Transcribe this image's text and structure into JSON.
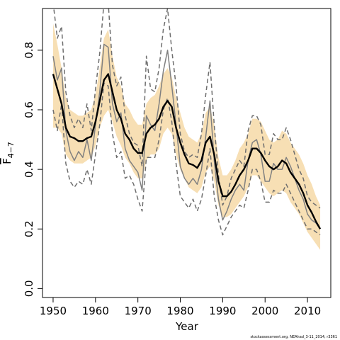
{
  "chart_data": {
    "type": "line",
    "title": "",
    "xlabel": "Year",
    "ylabel": "F4-7",
    "ylabel_parts": {
      "base": "F",
      "subscript": "4−7"
    },
    "xlim": [
      1947.5,
      2015.5
    ],
    "ylim": [
      -0.03,
      0.94
    ],
    "x_ticks": [
      1950,
      1960,
      1970,
      1980,
      1990,
      2000,
      2010
    ],
    "x_tick_labels": [
      "1950",
      "1960",
      "1970",
      "1980",
      "1990",
      "2000",
      "2010"
    ],
    "y_ticks": [
      0.0,
      0.2,
      0.4,
      0.6,
      0.8
    ],
    "y_tick_labels": [
      "0.0",
      "0.2",
      "0.4",
      "0.6",
      "0.8"
    ],
    "grid": false,
    "legend": "none",
    "footnote": "stockassessment.org, NEAhad_3-11_2014, r3361",
    "colors": {
      "band": "#f7dfb4",
      "estimate": "#000000",
      "retro": "#808080",
      "retro_ci": "#6e6e6e"
    },
    "x": [
      1950,
      1951,
      1952,
      1953,
      1954,
      1955,
      1956,
      1957,
      1958,
      1959,
      1960,
      1961,
      1962,
      1963,
      1964,
      1965,
      1966,
      1967,
      1968,
      1969,
      1970,
      1971,
      1972,
      1973,
      1974,
      1975,
      1976,
      1977,
      1978,
      1979,
      1980,
      1981,
      1982,
      1983,
      1984,
      1985,
      1986,
      1987,
      1988,
      1989,
      1990,
      1991,
      1992,
      1993,
      1994,
      1995,
      1996,
      1997,
      1998,
      1999,
      2000,
      2001,
      2002,
      2003,
      2004,
      2005,
      2006,
      2007,
      2008,
      2009,
      2010,
      2011,
      2012,
      2013
    ],
    "series": [
      {
        "role": "estimate",
        "values": [
          0.72,
          0.67,
          0.62,
          0.54,
          0.51,
          0.505,
          0.495,
          0.495,
          0.505,
          0.51,
          0.56,
          0.63,
          0.7,
          0.72,
          0.66,
          0.6,
          0.57,
          0.52,
          0.5,
          0.47,
          0.455,
          0.455,
          0.52,
          0.54,
          0.55,
          0.57,
          0.61,
          0.63,
          0.61,
          0.54,
          0.49,
          0.45,
          0.42,
          0.415,
          0.405,
          0.43,
          0.49,
          0.51,
          0.45,
          0.36,
          0.31,
          0.31,
          0.325,
          0.35,
          0.38,
          0.4,
          0.43,
          0.47,
          0.47,
          0.455,
          0.43,
          0.41,
          0.4,
          0.41,
          0.43,
          0.42,
          0.39,
          0.37,
          0.35,
          0.32,
          0.28,
          0.255,
          0.225,
          0.2
        ]
      },
      {
        "role": "confidence-lower",
        "values": [
          0.54,
          0.54,
          0.52,
          0.45,
          0.43,
          0.42,
          0.42,
          0.42,
          0.43,
          0.44,
          0.48,
          0.54,
          0.58,
          0.6,
          0.56,
          0.51,
          0.48,
          0.44,
          0.42,
          0.39,
          0.37,
          0.37,
          0.43,
          0.45,
          0.45,
          0.47,
          0.52,
          0.54,
          0.52,
          0.45,
          0.4,
          0.37,
          0.34,
          0.33,
          0.32,
          0.34,
          0.39,
          0.41,
          0.36,
          0.28,
          0.24,
          0.24,
          0.25,
          0.27,
          0.29,
          0.31,
          0.34,
          0.38,
          0.38,
          0.36,
          0.34,
          0.32,
          0.31,
          0.32,
          0.33,
          0.32,
          0.29,
          0.27,
          0.25,
          0.22,
          0.19,
          0.17,
          0.15,
          0.13
        ]
      },
      {
        "role": "confidence-upper",
        "values": [
          0.89,
          0.82,
          0.74,
          0.64,
          0.6,
          0.59,
          0.58,
          0.58,
          0.59,
          0.6,
          0.65,
          0.74,
          0.84,
          0.87,
          0.78,
          0.71,
          0.68,
          0.62,
          0.6,
          0.57,
          0.55,
          0.55,
          0.62,
          0.64,
          0.65,
          0.68,
          0.72,
          0.74,
          0.71,
          0.64,
          0.59,
          0.54,
          0.51,
          0.5,
          0.49,
          0.52,
          0.59,
          0.61,
          0.55,
          0.44,
          0.38,
          0.38,
          0.4,
          0.43,
          0.47,
          0.49,
          0.52,
          0.57,
          0.57,
          0.56,
          0.53,
          0.5,
          0.49,
          0.5,
          0.53,
          0.52,
          0.49,
          0.47,
          0.45,
          0.42,
          0.38,
          0.35,
          0.31,
          0.28
        ]
      },
      {
        "role": "retrospective",
        "values": [
          0.78,
          0.7,
          0.74,
          0.53,
          0.46,
          0.43,
          0.46,
          0.44,
          0.5,
          0.43,
          0.55,
          0.66,
          0.82,
          0.81,
          0.62,
          0.56,
          0.59,
          0.47,
          0.43,
          0.41,
          0.39,
          0.33,
          0.58,
          0.55,
          0.53,
          0.62,
          0.73,
          0.8,
          0.68,
          0.55,
          0.41,
          0.37,
          0.35,
          0.37,
          0.35,
          0.4,
          0.51,
          0.63,
          0.43,
          0.3,
          0.23,
          0.26,
          0.3,
          0.33,
          0.35,
          0.33,
          0.43,
          0.49,
          0.5,
          0.45,
          0.36,
          0.36,
          0.42,
          0.4,
          0.4,
          0.44,
          0.41,
          0.37,
          0.33,
          0.3,
          0.25,
          0.23,
          0.22,
          0.2
        ]
      },
      {
        "role": "retrospective-lower",
        "values": [
          0.6,
          0.53,
          0.62,
          0.42,
          0.36,
          0.34,
          0.36,
          0.35,
          0.4,
          0.35,
          0.45,
          0.55,
          0.69,
          0.68,
          0.52,
          0.44,
          0.46,
          0.37,
          0.38,
          0.35,
          0.3,
          0.26,
          0.44,
          0.44,
          0.44,
          0.5,
          0.6,
          0.64,
          0.56,
          0.42,
          0.31,
          0.29,
          0.27,
          0.3,
          0.26,
          0.3,
          0.38,
          0.47,
          0.31,
          0.23,
          0.18,
          0.21,
          0.24,
          0.26,
          0.28,
          0.27,
          0.33,
          0.4,
          0.4,
          0.36,
          0.29,
          0.29,
          0.33,
          0.32,
          0.32,
          0.35,
          0.32,
          0.29,
          0.26,
          0.23,
          0.2,
          0.2,
          0.19,
          0.18
        ]
      },
      {
        "role": "retrospective-upper",
        "values": [
          0.96,
          0.84,
          0.88,
          0.66,
          0.58,
          0.54,
          0.57,
          0.54,
          0.62,
          0.53,
          0.67,
          0.79,
          0.96,
          0.96,
          0.75,
          0.68,
          0.71,
          0.58,
          0.52,
          0.49,
          0.48,
          0.41,
          0.78,
          0.67,
          0.66,
          0.74,
          0.87,
          0.94,
          0.8,
          0.68,
          0.52,
          0.46,
          0.44,
          0.45,
          0.44,
          0.52,
          0.65,
          0.76,
          0.55,
          0.38,
          0.28,
          0.31,
          0.37,
          0.4,
          0.43,
          0.41,
          0.53,
          0.58,
          0.58,
          0.55,
          0.45,
          0.45,
          0.52,
          0.5,
          0.5,
          0.54,
          0.5,
          0.45,
          0.4,
          0.37,
          0.31,
          0.29,
          0.28,
          0.27
        ]
      }
    ]
  }
}
